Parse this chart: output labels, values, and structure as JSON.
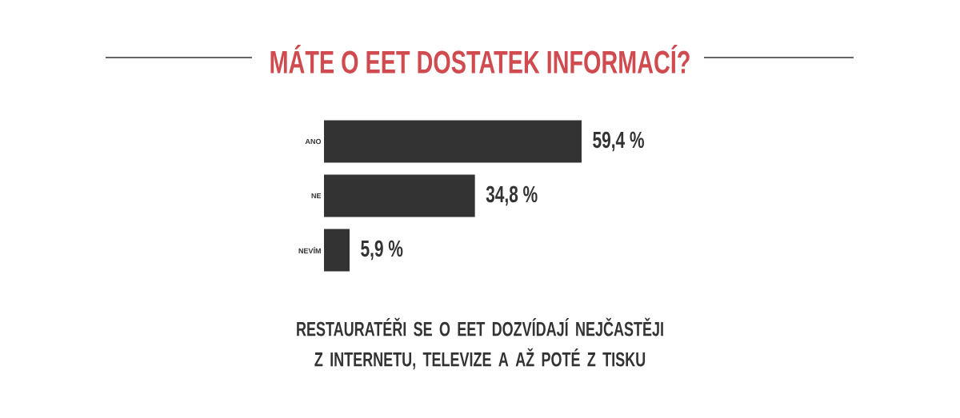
{
  "chart_data": {
    "type": "bar",
    "orientation": "horizontal",
    "title": "MÁTE O EET DOSTATEK INFORMACÍ?",
    "categories": [
      "ANO",
      "NE",
      "NEVÍM"
    ],
    "values": [
      59.4,
      34.8,
      5.9
    ],
    "value_labels": [
      "59,4 %",
      "34,8 %",
      "5,9 %"
    ],
    "color": "#333333",
    "annotations": [
      "RESTAURATÉŘI SE O EET DOZVÍDAJÍ NEJČASTĚJI Z INTERNETU, TELEVIZE A AŽ POTÉ Z TISKU"
    ]
  }
}
